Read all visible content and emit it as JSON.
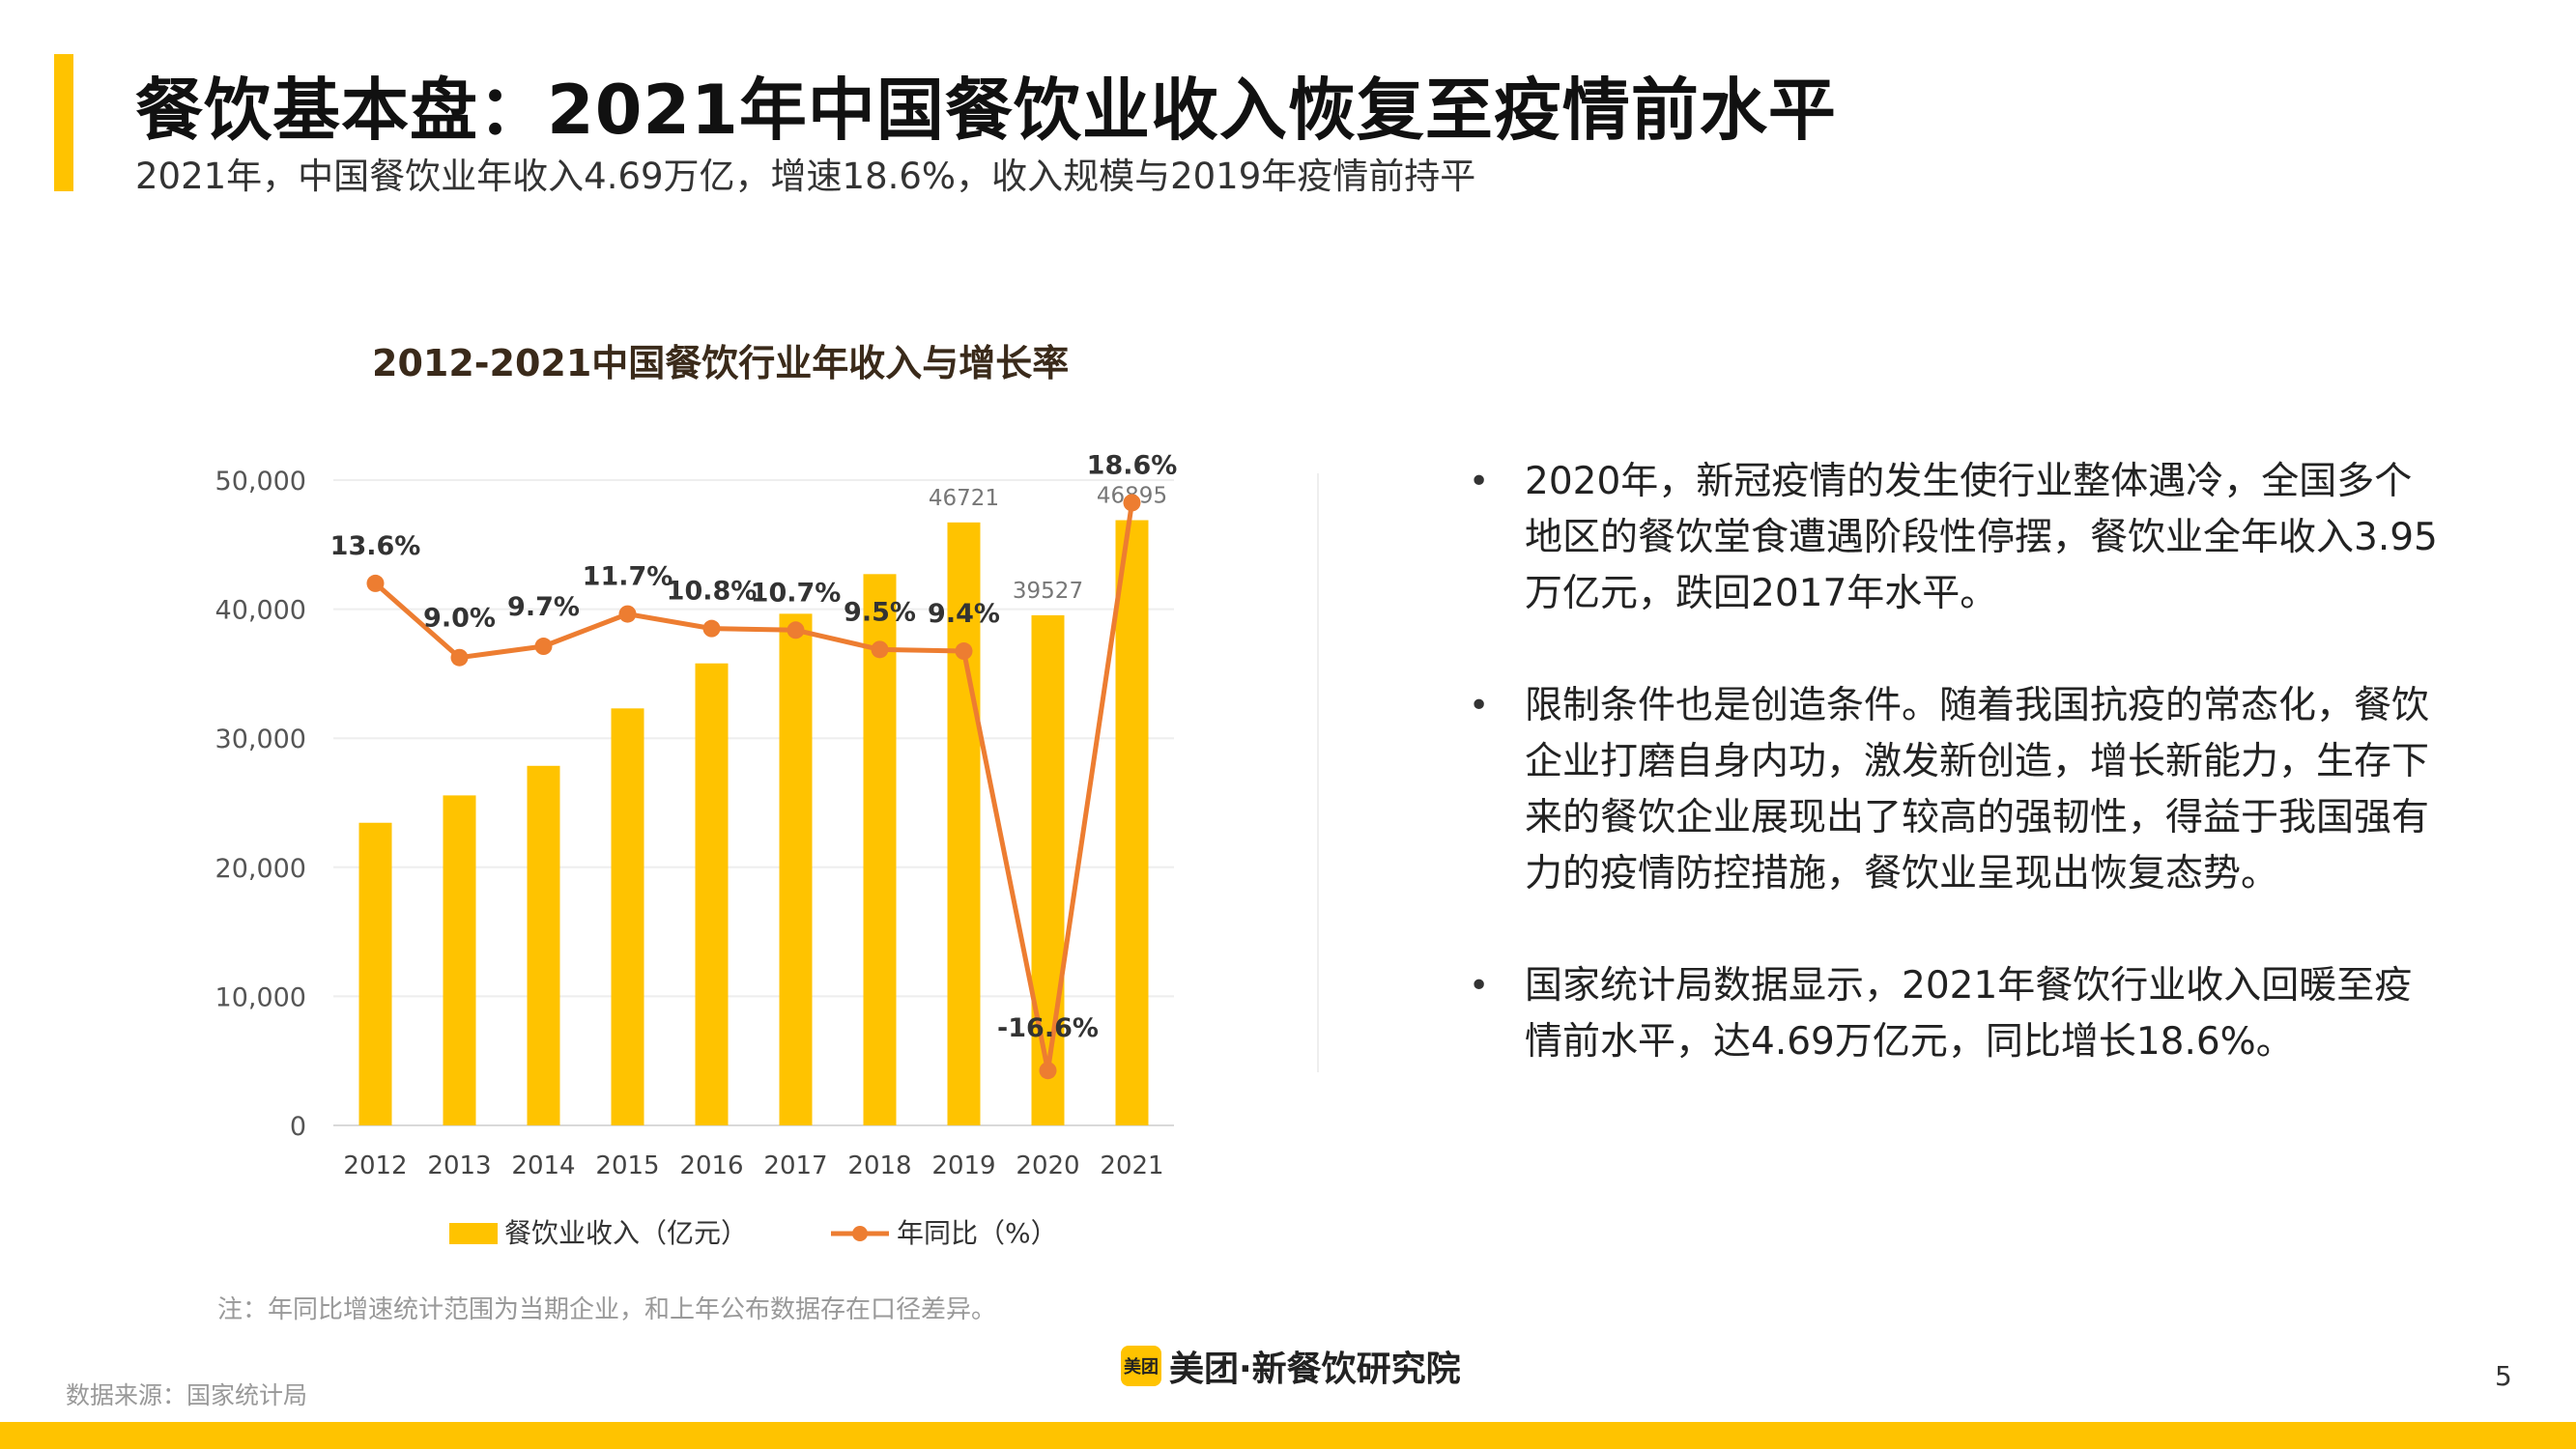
{
  "page": {
    "title": "餐饮基本盘：2021年中国餐饮业收入恢复至疫情前水平",
    "subtitle": "2021年，中国餐饮业年收入4.69万亿，增速18.6%，收入规模与2019年疫情前持平",
    "bullets": [
      "2020年，新冠疫情的发生使行业整体遇冷，全国多个地区的餐饮堂食遭遇阶段性停摆，餐饮业全年收入3.95万亿元，跌回2017年水平。",
      "限制条件也是创造条件。随着我国抗疫的常态化，餐饮企业打磨自身内功，激发新创造，增长新能力，生存下来的餐饮企业展现出了较高的强韧性，得益于我国强有力的疫情防控措施，餐饮业呈现出恢复态势。",
      "国家统计局数据显示，2021年餐饮行业收入回暖至疫情前水平，达4.69万亿元，同比增长18.6%。"
    ],
    "bullet_symbol": "•",
    "note": "注：年同比增速统计范围为当期企业，和上年公布数据存在口径差异。",
    "source": "数据来源：国家统计局",
    "logo_badge": "美团",
    "logo_text": "美团·新餐饮研究院",
    "page_number": "5"
  },
  "chart_data": {
    "type": "bar",
    "title": "2012-2021中国餐饮行业年收入与增长率",
    "categories": [
      "2012",
      "2013",
      "2014",
      "2015",
      "2016",
      "2017",
      "2018",
      "2019",
      "2020",
      "2021"
    ],
    "series": [
      {
        "name": "餐饮业收入（亿元）",
        "type": "bar",
        "axis": "left",
        "color": "#FFC300",
        "values": [
          23448,
          25569,
          27860,
          32310,
          35799,
          39644,
          42716,
          46721,
          39527,
          46895
        ],
        "data_labels": [
          "",
          "",
          "",
          "",
          "",
          "",
          "",
          "46721",
          "39527",
          "46895"
        ]
      },
      {
        "name": "年同比（%）",
        "type": "line",
        "axis": "right",
        "color": "#ED7D31",
        "values": [
          13.6,
          9.0,
          9.7,
          11.7,
          10.8,
          10.7,
          9.5,
          9.4,
          -16.6,
          18.6
        ],
        "data_labels": [
          "13.6%",
          "9.0%",
          "9.7%",
          "11.7%",
          "10.8%",
          "10.7%",
          "9.5%",
          "9.4%",
          "-16.6%",
          "18.6%"
        ]
      }
    ],
    "ylim": [
      0,
      50000
    ],
    "y_ticks": [
      "0",
      "10,000",
      "20,000",
      "30,000",
      "40,000",
      "50,000"
    ],
    "y2_range": [
      -20,
      20
    ],
    "y2_axis_visible": false,
    "grid": true,
    "legend_position": "bottom"
  }
}
